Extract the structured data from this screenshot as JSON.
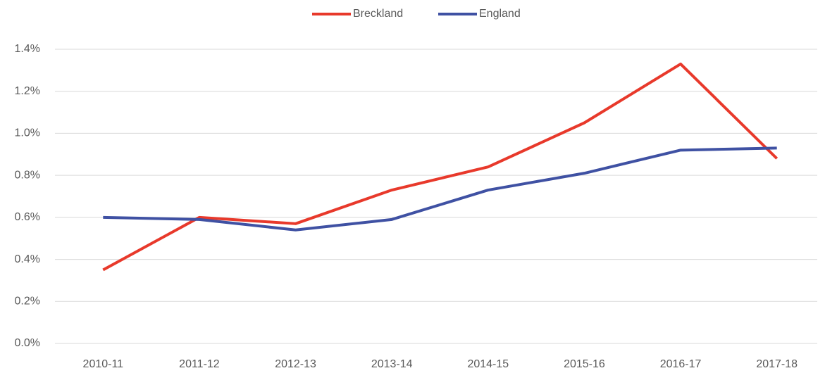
{
  "chart_data": {
    "type": "line",
    "categories": [
      "2010-11",
      "2011-12",
      "2012-13",
      "2013-14",
      "2014-15",
      "2015-16",
      "2016-17",
      "2017-18"
    ],
    "series": [
      {
        "name": "Breckland",
        "color": "#e8392b",
        "values": [
          0.35,
          0.6,
          0.57,
          0.73,
          0.84,
          1.05,
          1.33,
          0.88
        ]
      },
      {
        "name": "England",
        "color": "#3f51a3",
        "values": [
          0.6,
          0.59,
          0.54,
          0.59,
          0.73,
          0.81,
          0.92,
          0.93
        ]
      }
    ],
    "ylim": [
      0,
      1.4
    ],
    "yticks": [
      {
        "value": 0,
        "label": "0.0%"
      },
      {
        "value": 0.2,
        "label": "0.2%"
      },
      {
        "value": 0.4,
        "label": "0.4%"
      },
      {
        "value": 0.6,
        "label": "0.6%"
      },
      {
        "value": 0.8,
        "label": "0.8%"
      },
      {
        "value": 1.0,
        "label": "1.0%"
      },
      {
        "value": 1.2,
        "label": "1.2%"
      },
      {
        "value": 1.4,
        "label": "1.4%"
      }
    ],
    "grid": true,
    "legend": "top"
  }
}
